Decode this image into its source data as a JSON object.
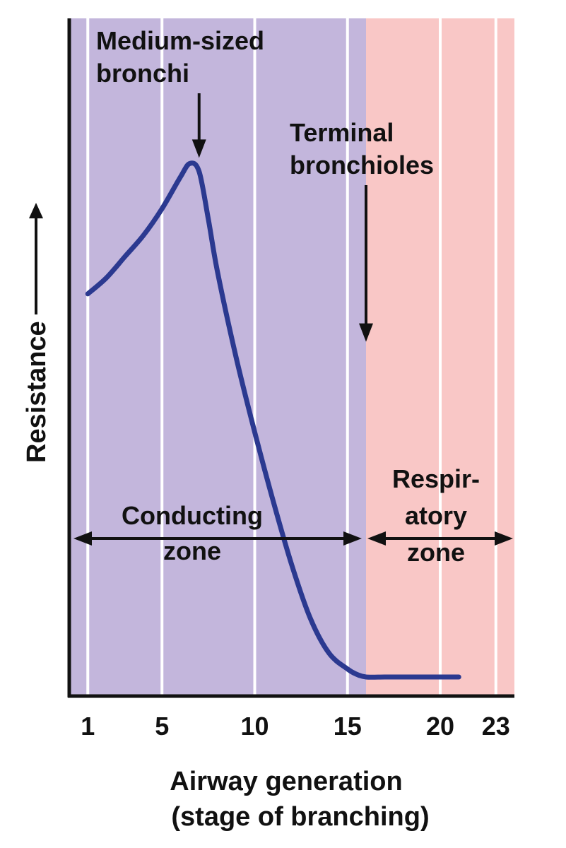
{
  "chart_data": {
    "type": "line",
    "x_ticks": [
      1,
      5,
      10,
      15,
      20,
      23
    ],
    "xlim": [
      0,
      24
    ],
    "ylim": [
      0,
      10
    ],
    "xlabel_line1": "Airway generation",
    "xlabel_line2": "(stage of branching)",
    "ylabel": "Resistance",
    "series": [
      {
        "x": [
          1,
          2,
          3,
          4,
          5,
          6,
          6.5,
          7,
          7.5,
          8,
          9,
          10,
          11,
          12,
          13,
          14,
          15,
          15.5,
          16,
          17,
          18,
          19,
          20,
          21
        ],
        "y": [
          7.2,
          7.5,
          7.9,
          8.3,
          8.8,
          9.4,
          9.65,
          9.5,
          8.6,
          7.6,
          6.0,
          4.6,
          3.3,
          2.1,
          1.1,
          0.45,
          0.15,
          0.05,
          0.0,
          0.0,
          0.0,
          0.0,
          0.0,
          0.0
        ]
      }
    ],
    "zones": [
      {
        "name_lines": [
          "Conducting",
          "zone"
        ],
        "x_start": 0,
        "x_end": 16,
        "color": "#c3b6dc"
      },
      {
        "name_lines": [
          "Respir-",
          "atory",
          "zone"
        ],
        "x_start": 16,
        "x_end": 24,
        "color": "#f9c7c6"
      }
    ],
    "annotations": [
      {
        "lines": [
          "Medium-sized",
          "bronchi"
        ],
        "x": 7,
        "target_y": 9.65
      },
      {
        "lines": [
          "Terminal",
          "bronchioles"
        ],
        "x": 16,
        "target_y": 6.3
      }
    ],
    "line_color": "#2b3990",
    "legend": "none"
  }
}
